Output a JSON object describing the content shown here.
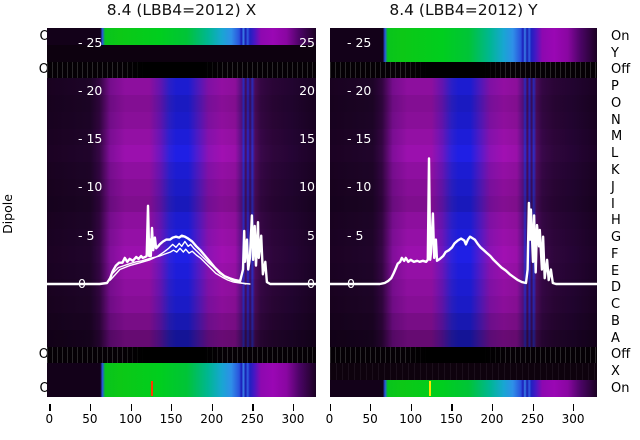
{
  "figure": {
    "left_axis_label": "Dipole"
  },
  "colors": {
    "background": "#ffffff",
    "curve": "#ffffff",
    "magenta": "#8d0f9e",
    "blue_column": "#1c1cd0",
    "green_band": "#00ce1e",
    "teal": "#00b694",
    "cyan": "#2f8fe8",
    "band_purple": "#9a07b4",
    "dark_purple": "#22042c",
    "row_black": "#0d010f",
    "marker_left": "#ff3800",
    "marker_right": "#ffe400",
    "text": "#000000",
    "tick_text_inside": "#ffffff"
  },
  "chart_data": {
    "type": "heatmap",
    "subtype": "heatmap with overlaid line traces, per-dipole color strips",
    "x_range": [
      0,
      330
    ],
    "x_ticks": [
      0,
      50,
      100,
      150,
      200,
      250,
      300
    ],
    "value_axis": {
      "ticks": [
        25,
        20,
        15,
        10,
        5,
        0
      ],
      "baseline": 0
    },
    "y_tick_labels_inner_left": [
      "- 25",
      "- 20",
      "- 15",
      "- 10",
      "- 5",
      "0"
    ],
    "y_tick_labels_inner_right": [
      "25",
      "20",
      "15",
      "10",
      "5",
      "0"
    ],
    "row_labels": [
      "On",
      "Y",
      "Off",
      "P",
      "O",
      "N",
      "M",
      "L",
      "K",
      "J",
      "I",
      "H",
      "G",
      "F",
      "E",
      "D",
      "C",
      "B",
      "A",
      "Off",
      "X",
      "On"
    ],
    "panels": [
      {
        "id": "x",
        "title": "8.4 (LBB4=2012) X",
        "row_types": [
          "green",
          "black",
          "off",
          "body",
          "body",
          "body",
          "body",
          "body",
          "body",
          "body",
          "body",
          "body",
          "body",
          "body",
          "body",
          "body",
          "body",
          "body",
          "body",
          "off",
          "green",
          "green"
        ],
        "marker": {
          "x": 126.5,
          "color": "#ff3800"
        },
        "series": [
          {
            "name": "trace-main",
            "width": 2.4,
            "points": [
              [
                -3,
                0
              ],
              [
                62,
                0
              ],
              [
                71,
                0.1
              ],
              [
                75,
                0.6
              ],
              [
                78,
                1.3
              ],
              [
                82,
                1.9
              ],
              [
                86,
                2.2
              ],
              [
                90,
                2.2
              ],
              [
                93,
                2.7
              ],
              [
                96,
                2.3
              ],
              [
                99,
                2.6
              ],
              [
                103,
                2.4
              ],
              [
                107,
                2.8
              ],
              [
                110,
                2.6
              ],
              [
                113,
                2.9
              ],
              [
                115,
                2.7
              ],
              [
                118,
                2.8
              ],
              [
                120,
                2.9
              ],
              [
                121.6,
                8.1
              ],
              [
                123,
                2.9
              ],
              [
                124,
                4.6
              ],
              [
                125,
                2.9
              ],
              [
                126.5,
                5.8
              ],
              [
                128,
                3.5
              ],
              [
                130,
                4.8
              ],
              [
                131.5,
                3.7
              ],
              [
                134,
                3.9
              ],
              [
                136,
                4.1
              ],
              [
                140,
                4.4
              ],
              [
                144,
                4.6
              ],
              [
                148.5,
                4.6
              ],
              [
                152,
                4.8
              ],
              [
                156,
                4.9
              ],
              [
                160,
                4.8
              ],
              [
                163,
                5.0
              ],
              [
                167,
                4.9
              ],
              [
                171,
                4.7
              ],
              [
                176,
                4.4
              ],
              [
                181,
                3.9
              ],
              [
                186,
                3.5
              ],
              [
                192,
                2.9
              ],
              [
                198,
                2.3
              ],
              [
                204,
                1.7
              ],
              [
                210,
                1.2
              ],
              [
                216,
                0.8
              ],
              [
                222,
                0.6
              ],
              [
                229,
                0.4
              ],
              [
                235,
                0.3
              ],
              [
                238.5,
                1.5
              ],
              [
                240,
                5.5
              ],
              [
                241,
                2.3
              ],
              [
                243.5,
                4.6
              ],
              [
                245,
                1.5
              ],
              [
                247,
                2.7
              ],
              [
                249.5,
                7.1
              ],
              [
                251,
                2.5
              ],
              [
                253,
                6.0
              ],
              [
                254.5,
                1.9
              ],
              [
                257,
                6.4
              ],
              [
                258,
                2.7
              ],
              [
                261,
                5.0
              ],
              [
                263,
                1.0
              ],
              [
                266,
                2.3
              ],
              [
                268,
                0.2
              ],
              [
                272,
                0
              ],
              [
                330,
                0
              ]
            ]
          },
          {
            "name": "trace-2",
            "width": 1.4,
            "points": [
              [
                71,
                0.1
              ],
              [
                77,
                1.0
              ],
              [
                85,
                1.7
              ],
              [
                92,
                1.9
              ],
              [
                99,
                2.1
              ],
              [
                107,
                2.3
              ],
              [
                114,
                2.4
              ],
              [
                122,
                2.6
              ],
              [
                126,
                2.7
              ],
              [
                131,
                2.8
              ],
              [
                136,
                2.9
              ],
              [
                142,
                3.1
              ],
              [
                149,
                3.3
              ],
              [
                153,
                3.5
              ],
              [
                157,
                3.3
              ],
              [
                161,
                3.7
              ],
              [
                165,
                3.3
              ],
              [
                168,
                3.6
              ],
              [
                172,
                3.2
              ],
              [
                176,
                3.4
              ],
              [
                181,
                3.0
              ],
              [
                186,
                2.7
              ],
              [
                192,
                2.2
              ],
              [
                198,
                1.7
              ],
              [
                205,
                1.1
              ],
              [
                213,
                0.7
              ],
              [
                220,
                0.4
              ],
              [
                227,
                0.2
              ],
              [
                235,
                0.1
              ],
              [
                247,
                0
              ]
            ]
          },
          {
            "name": "trace-3",
            "width": 1.4,
            "points": [
              [
                75,
                0.4
              ],
              [
                87,
                1.5
              ],
              [
                99,
                1.9
              ],
              [
                112,
                2.2
              ],
              [
                124,
                2.5
              ],
              [
                134,
                2.9
              ],
              [
                141,
                3.3
              ],
              [
                147,
                3.7
              ],
              [
                152,
                4.1
              ],
              [
                156,
                3.8
              ],
              [
                160,
                4.2
              ],
              [
                163,
                3.9
              ],
              [
                167,
                4.4
              ],
              [
                171,
                3.9
              ],
              [
                174,
                4.1
              ],
              [
                178,
                3.7
              ],
              [
                183,
                3.3
              ],
              [
                189,
                2.8
              ],
              [
                195,
                2.3
              ],
              [
                203,
                1.7
              ],
              [
                210,
                1.1
              ],
              [
                218,
                0.7
              ],
              [
                225,
                0.4
              ],
              [
                232,
                0.2
              ],
              [
                242,
                0
              ]
            ]
          }
        ]
      },
      {
        "id": "y",
        "title": "8.4 (LBB4=2012) Y",
        "row_types": [
          "green",
          "green",
          "off",
          "body",
          "body",
          "body",
          "body",
          "body",
          "body",
          "body",
          "body",
          "body",
          "body",
          "body",
          "body",
          "body",
          "body",
          "body",
          "body",
          "off",
          "dark",
          "green"
        ],
        "marker": {
          "x": 124,
          "color": "#ffe400"
        },
        "series": [
          {
            "name": "trace-main",
            "width": 2.4,
            "points": [
              [
                -3,
                0
              ],
              [
                62,
                0
              ],
              [
                68,
                0.1
              ],
              [
                72,
                0.3
              ],
              [
                76,
                0.6
              ],
              [
                79,
                1.1
              ],
              [
                82,
                1.7
              ],
              [
                84,
                2.1
              ],
              [
                87,
                2.3
              ],
              [
                89,
                2.7
              ],
              [
                92,
                2.4
              ],
              [
                94,
                2.7
              ],
              [
                97,
                2.3
              ],
              [
                100,
                2.5
              ],
              [
                104,
                2.3
              ],
              [
                108,
                2.4
              ],
              [
                111,
                2.3
              ],
              [
                115,
                2.4
              ],
              [
                119,
                2.3
              ],
              [
                121,
                2.5
              ],
              [
                122.5,
                13.0
              ],
              [
                124,
                2.5
              ],
              [
                125,
                3.3
              ],
              [
                127.4,
                7.3
              ],
              [
                129,
                2.7
              ],
              [
                131,
                4.6
              ],
              [
                132.4,
                2.4
              ],
              [
                136,
                2.6
              ],
              [
                140,
                2.9
              ],
              [
                143,
                3.3
              ],
              [
                147,
                3.5
              ],
              [
                151,
                3.8
              ],
              [
                154,
                4.2
              ],
              [
                158,
                4.5
              ],
              [
                162,
                4.7
              ],
              [
                166,
                4.5
              ],
              [
                168,
                4.1
              ],
              [
                170.5,
                4.6
              ],
              [
                173,
                4.9
              ],
              [
                175,
                4.8
              ],
              [
                179,
                4.6
              ],
              [
                183,
                4.1
              ],
              [
                186,
                3.8
              ],
              [
                190,
                3.5
              ],
              [
                194,
                3.2
              ],
              [
                198,
                2.9
              ],
              [
                202,
                2.5
              ],
              [
                207,
                2.1
              ],
              [
                212,
                1.7
              ],
              [
                217,
                1.4
              ],
              [
                222,
                1.0
              ],
              [
                227,
                0.7
              ],
              [
                232,
                0.4
              ],
              [
                237,
                0.2
              ],
              [
                242,
                0.1
              ],
              [
                244,
                1.5
              ],
              [
                245.6,
                8.4
              ],
              [
                247,
                4.6
              ],
              [
                248,
                7.7
              ],
              [
                250.6,
                2.3
              ],
              [
                252,
                7.1
              ],
              [
                254,
                1.2
              ],
              [
                255.5,
                6.1
              ],
              [
                258,
                3.9
              ],
              [
                259,
                5.6
              ],
              [
                261.6,
                1.5
              ],
              [
                263,
                4.9
              ],
              [
                265,
                0.6
              ],
              [
                268,
                2.5
              ],
              [
                270,
                0.4
              ],
              [
                272.7,
                1.5
              ],
              [
                275,
                0.1
              ],
              [
                279,
                0
              ],
              [
                329,
                0
              ]
            ]
          }
        ]
      }
    ]
  }
}
